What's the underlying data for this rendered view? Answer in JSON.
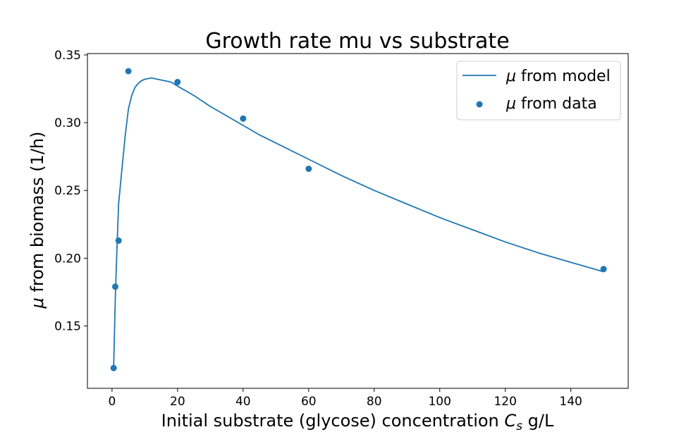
{
  "chart_data": {
    "type": "line",
    "title": "Growth rate mu vs substrate",
    "xlabel": {
      "prefix": "Initial substrate (glycose) concentration ",
      "symbol": "C",
      "subscript": "s",
      "suffix": " g/L"
    },
    "ylabel": {
      "symbol": "μ",
      "rest": " from biomass (1/h)"
    },
    "xlim": [
      -7.5,
      157.5
    ],
    "ylim": [
      0.104,
      0.351
    ],
    "xticks": [
      0,
      20,
      40,
      60,
      80,
      100,
      120,
      140
    ],
    "xtick_labels": [
      "0",
      "20",
      "40",
      "60",
      "80",
      "100",
      "120",
      "140"
    ],
    "yticks": [
      0.15,
      0.2,
      0.25,
      0.3,
      0.35
    ],
    "ytick_labels": [
      "0.15",
      "0.20",
      "0.25",
      "0.30",
      "0.35"
    ],
    "grid": false,
    "legend_position": "top-right",
    "color": "#1f77b4",
    "series": [
      {
        "name": "μ from model",
        "legend_symbol": "μ",
        "legend_rest": " from model",
        "kind": "line",
        "x": [
          0.5,
          1,
          1.5,
          2,
          3,
          4,
          5,
          6,
          7,
          8,
          9,
          10,
          12,
          14,
          16,
          18,
          20,
          25,
          30,
          35,
          40,
          45,
          50,
          60,
          70,
          80,
          90,
          100,
          110,
          120,
          130,
          140,
          150
        ],
        "y": [
          0.12,
          0.17,
          0.206,
          0.24,
          0.265,
          0.29,
          0.31,
          0.32,
          0.326,
          0.329,
          0.331,
          0.332,
          0.333,
          0.332,
          0.331,
          0.33,
          0.327,
          0.32,
          0.312,
          0.305,
          0.298,
          0.291,
          0.285,
          0.273,
          0.261,
          0.25,
          0.24,
          0.23,
          0.221,
          0.212,
          0.204,
          0.197,
          0.19
        ]
      },
      {
        "name": "μ from data",
        "legend_symbol": "μ",
        "legend_rest": " from data",
        "kind": "scatter",
        "x": [
          0.5,
          1,
          2,
          5,
          20,
          40,
          60,
          150
        ],
        "y": [
          0.119,
          0.179,
          0.213,
          0.338,
          0.33,
          0.303,
          0.266,
          0.192
        ]
      }
    ]
  }
}
